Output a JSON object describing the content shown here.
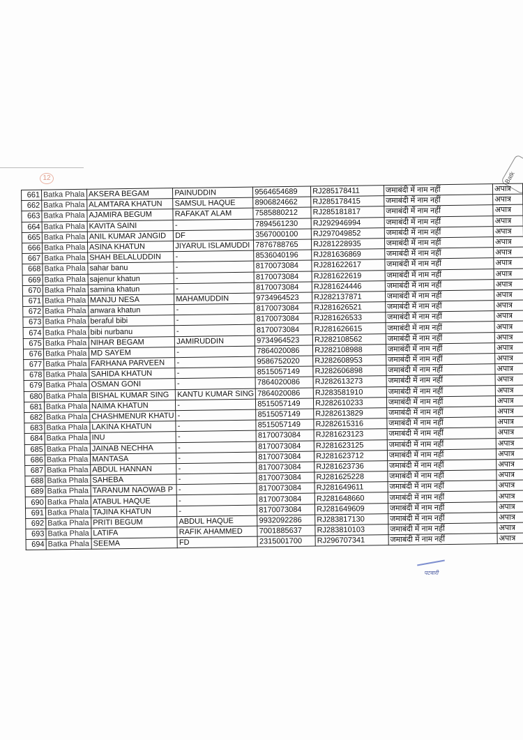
{
  "page_mark": "12",
  "stamp_text": "Batk",
  "signature_caption": "पटवारी",
  "rows": [
    [
      "661",
      "Batka Phala",
      "AKSERA BEGAM",
      "PAINUDDIN",
      "9564654689",
      "RJ285178411",
      "जमाबंदी में नाम नहीं",
      "अपात्र"
    ],
    [
      "662",
      "Batka Phala",
      "ALAMTARA KHATUN",
      "SAMSUL HAQUE",
      "8906824662",
      "RJ285178415",
      "जमाबंदी में नाम नहीं",
      "अपात्र"
    ],
    [
      "663",
      "Batka Phala",
      "AJAMIRA BEGUM",
      "RAFAKAT ALAM",
      "7585880212",
      "RJ285181817",
      "जमाबंदी में नाम नहीं",
      "अपात्र"
    ],
    [
      "664",
      "Batka Phala",
      "KAVITA SAINI",
      "-",
      "7894561230",
      "RJ292946994",
      "जमाबंदी में नाम नहीं",
      "अपात्र"
    ],
    [
      "665",
      "Batka Phala",
      "ANIL KUMAR JANGID",
      "DF",
      "3567000100",
      "RJ297049852",
      "जमाबंदी में नाम नहीं",
      "अपात्र"
    ],
    [
      "666",
      "Batka Phala",
      "ASINA KHATUN",
      "JIYARUL ISLAMUDDI",
      "7876788765",
      "RJ281228935",
      "जमाबंदी में नाम नहीं",
      "अपात्र"
    ],
    [
      "667",
      "Batka Phala",
      "SHAH BELALUDDIN",
      "-",
      "8536040196",
      "RJ281636869",
      "जमाबंदी में नाम नहीं",
      "अपात्र"
    ],
    [
      "668",
      "Batka Phala",
      "sahar banu",
      "-",
      "8170073084",
      "RJ281622617",
      "जमाबंदी में नाम नहीं",
      "अपात्र"
    ],
    [
      "669",
      "Batka Phala",
      "sajenur khatun",
      "-",
      "8170073084",
      "RJ281622619",
      "जमाबंदी में नाम नहीं",
      "अपात्र"
    ],
    [
      "670",
      "Batka Phala",
      "samina khatun",
      "-",
      "8170073084",
      "RJ281624446",
      "जमाबंदी में नाम नहीं",
      "अपात्र"
    ],
    [
      "671",
      "Batka Phala",
      "MANJU NESA",
      "MAHAMUDDIN",
      "9734964523",
      "RJ282137871",
      "जमाबंदी में नाम नहीं",
      "अपात्र"
    ],
    [
      "672",
      "Batka Phala",
      "anwara khatun",
      "-",
      "8170073084",
      "RJ281626521",
      "जमाबंदी में नाम नहीं",
      "अपात्र"
    ],
    [
      "673",
      "Batka Phala",
      "beraful bibi",
      "-",
      "8170073084",
      "RJ281626533",
      "जमाबंदी में नाम नहीं",
      "अपात्र"
    ],
    [
      "674",
      "Batka Phala",
      "bibi nurbanu",
      "-",
      "8170073084",
      "RJ281626615",
      "जमाबंदी में नाम नहीं",
      "अपात्र"
    ],
    [
      "675",
      "Batka Phala",
      "NIHAR BEGAM",
      "JAMIRUDDIN",
      "9734964523",
      "RJ282108562",
      "जमाबंदी में नाम नहीं",
      "अपात्र"
    ],
    [
      "676",
      "Batka Phala",
      "MD SAYEM",
      "-",
      "7864020086",
      "RJ282108988",
      "जमाबंदी में नाम नहीं",
      "अपात्र"
    ],
    [
      "677",
      "Batka Phala",
      "FARHANA PARVEEN",
      "-",
      "9586752020",
      "RJ282608953",
      "जमाबंदी में नाम नहीं",
      "अपात्र"
    ],
    [
      "678",
      "Batka Phala",
      "SAHIDA KHATUN",
      "-",
      "8515057149",
      "RJ282606898",
      "जमाबंदी में नाम नहीं",
      "अपात्र"
    ],
    [
      "679",
      "Batka Phala",
      "OSMAN GONI",
      "-",
      "7864020086",
      "RJ282613273",
      "जमाबंदी में नाम नहीं",
      "अपात्र"
    ],
    [
      "680",
      "Batka Phala",
      "BISHAL KUMAR SING",
      "KANTU KUMAR SING",
      "7864020086",
      "RJ283581910",
      "जमाबंदी में नाम नहीं",
      "अपात्र"
    ],
    [
      "681",
      "Batka Phala",
      "NAIMA KHATUN",
      "-",
      "8515057149",
      "RJ282610233",
      "जमाबंदी में नाम नहीं",
      "अपात्र"
    ],
    [
      "682",
      "Batka Phala",
      "CHASHMENUR KHATU",
      "-",
      "8515057149",
      "RJ282613829",
      "जमाबंदी में नाम नहीं",
      "अपात्र"
    ],
    [
      "683",
      "Batka Phala",
      "LAKINA KHATUN",
      "-",
      "8515057149",
      "RJ282615316",
      "जमाबंदी में नाम नहीं",
      "अपात्र"
    ],
    [
      "684",
      "Batka Phala",
      "INU",
      "-",
      "8170073084",
      "RJ281623123",
      "जमाबंदी में नाम नहीं",
      "अपात्र"
    ],
    [
      "685",
      "Batka Phala",
      "JAINAB NECHHA",
      "-",
      "8170073084",
      "RJ281623125",
      "जमाबंदी में नाम नहीं",
      "अपात्र"
    ],
    [
      "686",
      "Batka Phala",
      "MANTASA",
      "-",
      "8170073084",
      "RJ281623712",
      "जमाबंदी में नाम नहीं",
      "अपात्र"
    ],
    [
      "687",
      "Batka Phala",
      "ABDUL HANNAN",
      "-",
      "8170073084",
      "RJ281623736",
      "जमाबंदी में नाम नहीं",
      "अपात्र"
    ],
    [
      "688",
      "Batka Phala",
      "SAHEBA",
      "-",
      "8170073084",
      "RJ281625228",
      "जमाबंदी में नाम नहीं",
      "अपात्र"
    ],
    [
      "689",
      "Batka Phala",
      "TARANUM NAOWAB P",
      "-",
      "8170073084",
      "RJ281649611",
      "जमाबंदी में नाम नहीं",
      "अपात्र"
    ],
    [
      "690",
      "Batka Phala",
      "ATABUL HAQUE",
      "-",
      "8170073084",
      "RJ281648660",
      "जमाबंदी में नाम नहीं",
      "अपात्र"
    ],
    [
      "691",
      "Batka Phala",
      "TAJINA KHATUN",
      "-",
      "8170073084",
      "RJ281649609",
      "जमाबंदी में नाम नहीं",
      "अपात्र"
    ],
    [
      "692",
      "Batka Phala",
      "PRITI BEGUM",
      "ABDUL HAQUE",
      "9932092286",
      "RJ283817130",
      "जमाबंदी में नाम नहीं",
      "अपात्र"
    ],
    [
      "693",
      "Batka Phala",
      "LATIFA",
      "RAFIK AHAMMED",
      "7001885637",
      "RJ283810103",
      "जमाबंदी में नाम नहीं",
      "अपात्र"
    ],
    [
      "694",
      "Batka Phala",
      "SEEMA",
      "FD",
      "2315001700",
      "RJ296707341",
      "जमाबंदी में नाम नहीं",
      "अपात्र"
    ]
  ]
}
